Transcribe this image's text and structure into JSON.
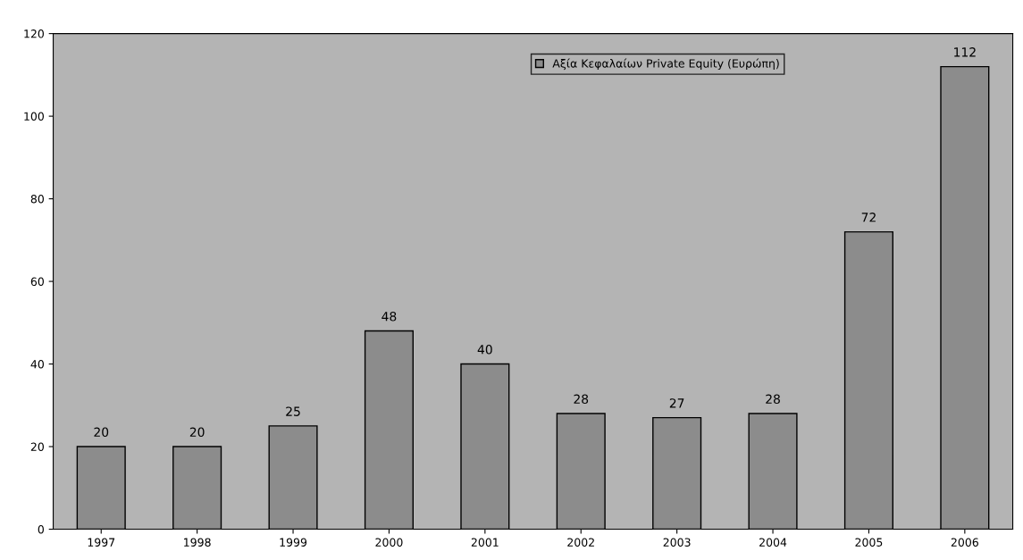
{
  "chart_data": {
    "type": "bar",
    "categories": [
      "1997",
      "1998",
      "1999",
      "2000",
      "2001",
      "2002",
      "2003",
      "2004",
      "2005",
      "2006"
    ],
    "series": [
      {
        "name": "Αξία Κεφαλαίων Private Equity (Ευρώπη)",
        "color": "#8c8c8c",
        "values": [
          20,
          20,
          25,
          48,
          40,
          28,
          27,
          28,
          72,
          112
        ]
      }
    ],
    "ylim": [
      0,
      120
    ],
    "yticks": [
      0,
      20,
      40,
      60,
      80,
      100,
      120
    ],
    "data_labels": true,
    "legend": "top"
  }
}
